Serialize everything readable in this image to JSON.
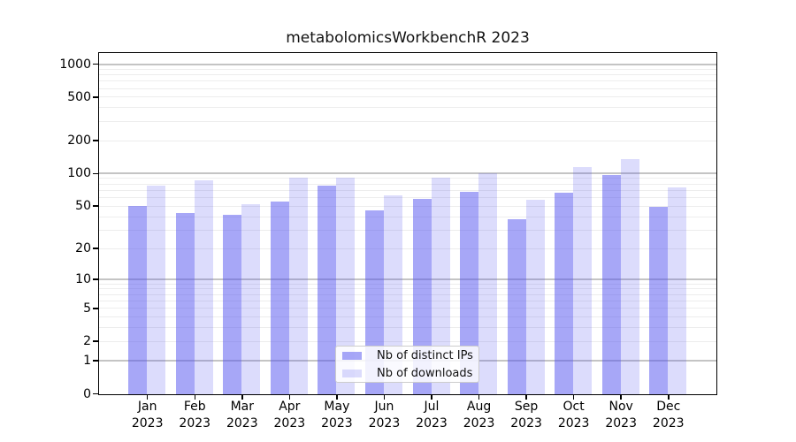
{
  "chart_data": {
    "type": "bar",
    "title": "metabolomicsWorkbenchR 2023",
    "categories": [
      "Jan 2023",
      "Feb 2023",
      "Mar 2023",
      "Apr 2023",
      "May 2023",
      "Jun 2023",
      "Jul 2023",
      "Aug 2023",
      "Sep 2023",
      "Oct 2023",
      "Nov 2023",
      "Dec 2023"
    ],
    "x_tick_months": [
      "Jan",
      "Feb",
      "Mar",
      "Apr",
      "May",
      "Jun",
      "Jul",
      "Aug",
      "Sep",
      "Oct",
      "Nov",
      "Dec"
    ],
    "x_tick_year": "2023",
    "series": [
      {
        "name": "Nb of distinct IPs",
        "color": "rgba(80,80,240,0.5)",
        "values": [
          51,
          44,
          42,
          56,
          78,
          46,
          59,
          68,
          38,
          67,
          98,
          50
        ]
      },
      {
        "name": "Nb of downloads",
        "color": "rgba(80,80,240,0.2)",
        "values": [
          78,
          88,
          53,
          93,
          93,
          64,
          93,
          102,
          58,
          115,
          138,
          76
        ]
      }
    ],
    "yscale": "log1p",
    "ylim": [
      0,
      1000
    ],
    "ytick_labels": [
      "0",
      "1",
      "2",
      "5",
      "10",
      "20",
      "50",
      "100",
      "200",
      "500",
      "1000"
    ],
    "ytick_values": [
      0,
      1,
      2,
      5,
      10,
      20,
      50,
      100,
      200,
      500,
      1000
    ],
    "grid": "major decade lines gray, log minor lines faint",
    "legend_position": "inside bottom-center"
  },
  "colors": {
    "bar_distinct_ips": "rgba(80,80,240,0.5)",
    "bar_downloads": "rgba(80,80,240,0.2)",
    "grid_major": "#c4c4c4",
    "grid_minor": "#ededed",
    "axis": "#000000",
    "background": "#ffffff"
  }
}
